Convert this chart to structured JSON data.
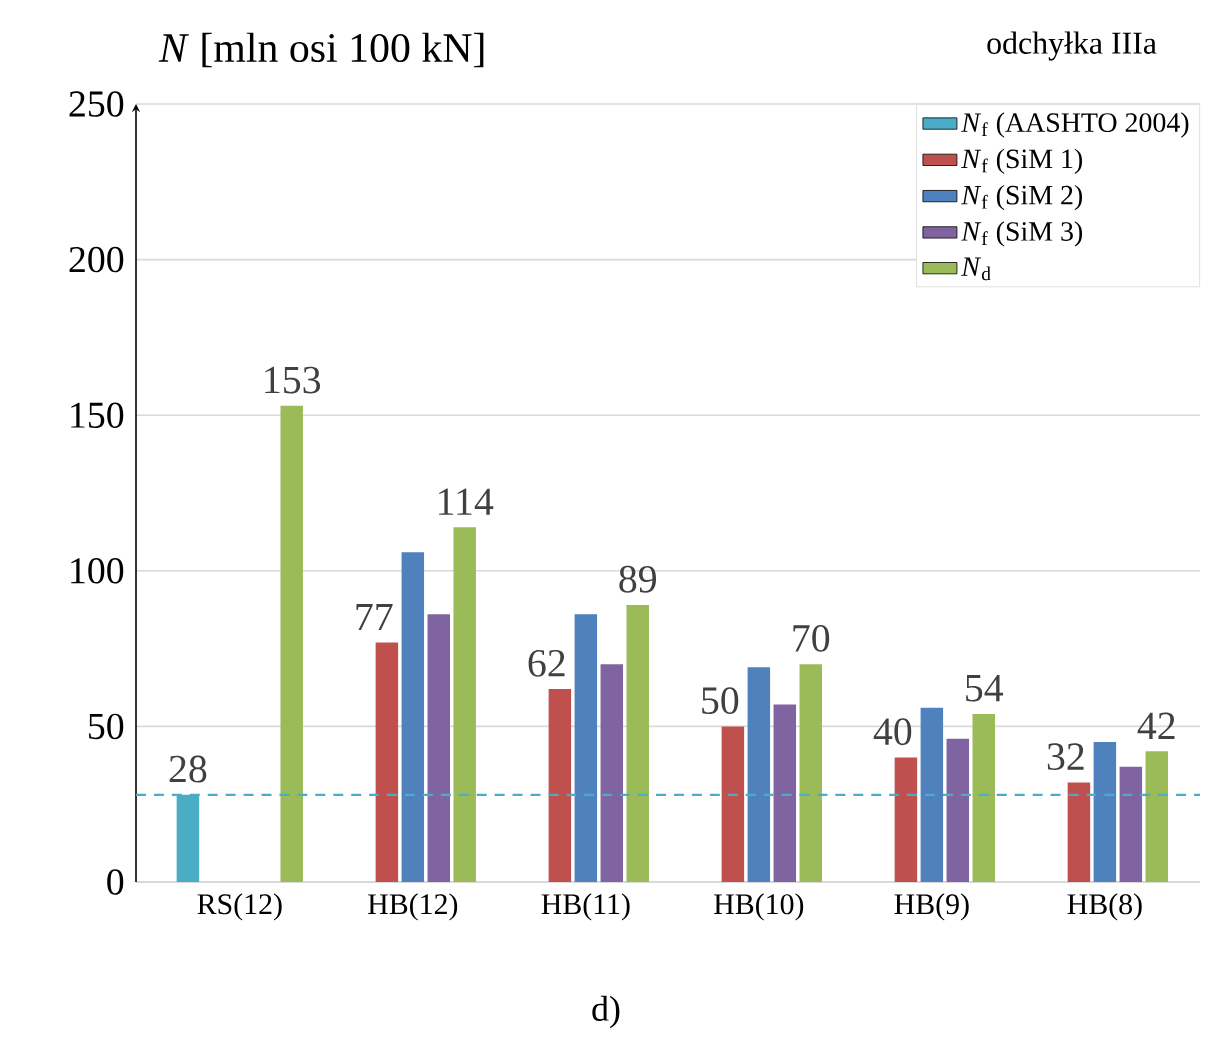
{
  "chart_data": {
    "type": "bar",
    "title": "odchyłka IIIa",
    "ylabel": "*N* [mln osi 100 kN]",
    "annotations": [
      "d)"
    ],
    "categories": [
      "RS(12)",
      "HB(12)",
      "HB(11)",
      "HB(10)",
      "HB(9)",
      "HB(8)"
    ],
    "series": [
      {
        "name": "*N*$_{f}$ (AASHTO 2004)",
        "color": "#4bacc6",
        "values": [
          28,
          null,
          null,
          null,
          null,
          null
        ],
        "value_labels": [
          "28",
          null,
          null,
          null,
          null,
          null
        ]
      },
      {
        "name": "*N*$_{f}$ (SiM 1)",
        "color": "#c0504d",
        "values": [
          null,
          77,
          62,
          50,
          40,
          32
        ],
        "value_labels": [
          null,
          "77",
          "62",
          "50",
          "40",
          "32"
        ]
      },
      {
        "name": "*N*$_{f}$ (SiM 2)",
        "color": "#4f81bd",
        "values": [
          null,
          106,
          86,
          69,
          56,
          45
        ]
      },
      {
        "name": "*N*$_{f}$ (SiM 3)",
        "color": "#8064a2",
        "values": [
          null,
          86,
          70,
          57,
          46,
          37
        ]
      },
      {
        "name": "*N*$_{d}$",
        "color": "#9bbb59",
        "values": [
          153,
          114,
          89,
          70,
          54,
          42
        ],
        "value_labels": [
          "153",
          "114",
          "89",
          "70",
          "54",
          "42"
        ]
      }
    ],
    "ylim": [
      0,
      250
    ],
    "yticks": [
      0,
      50,
      100,
      150,
      200,
      250
    ],
    "grid": "y",
    "legend": "top right",
    "ref_lines": [
      {
        "axis": "y",
        "value": 28,
        "color": "#4bacc6",
        "line_style": "dashed"
      }
    ]
  }
}
